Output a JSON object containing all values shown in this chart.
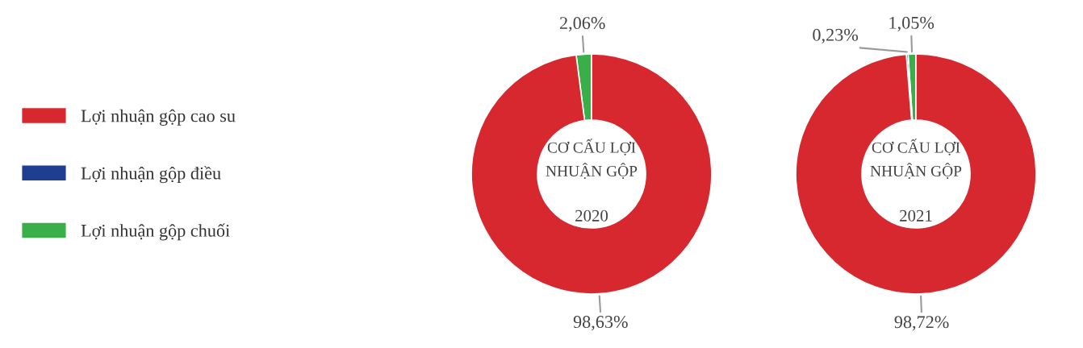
{
  "chart_data": [
    {
      "type": "donut",
      "title": "CƠ CẤU LỢI\nNHUẬN GỘP",
      "subtitle": "2020",
      "categories": [
        "Lợi nhuận gộp cao su",
        "Lợi nhuận gộp điều",
        "Lợi nhuận gộp chuối"
      ],
      "values": [
        98.63,
        null,
        2.06
      ],
      "colors": [
        "#d7282f",
        "#1f3e8f",
        "#3aae49"
      ],
      "value_labels": [
        "98,63%",
        null,
        "2,06%"
      ],
      "legend": "left"
    },
    {
      "type": "donut",
      "title": "CƠ CẤU LỢI\nNHUẬN GỘP",
      "subtitle": "2021",
      "categories": [
        null,
        null,
        null
      ],
      "values": [
        98.72,
        0.23,
        1.05
      ],
      "colors": [
        "#d7282f",
        "#1f3e8f",
        "#3aae49"
      ],
      "value_labels": [
        "98,72%",
        "0,23%",
        "1,05%"
      ]
    }
  ]
}
